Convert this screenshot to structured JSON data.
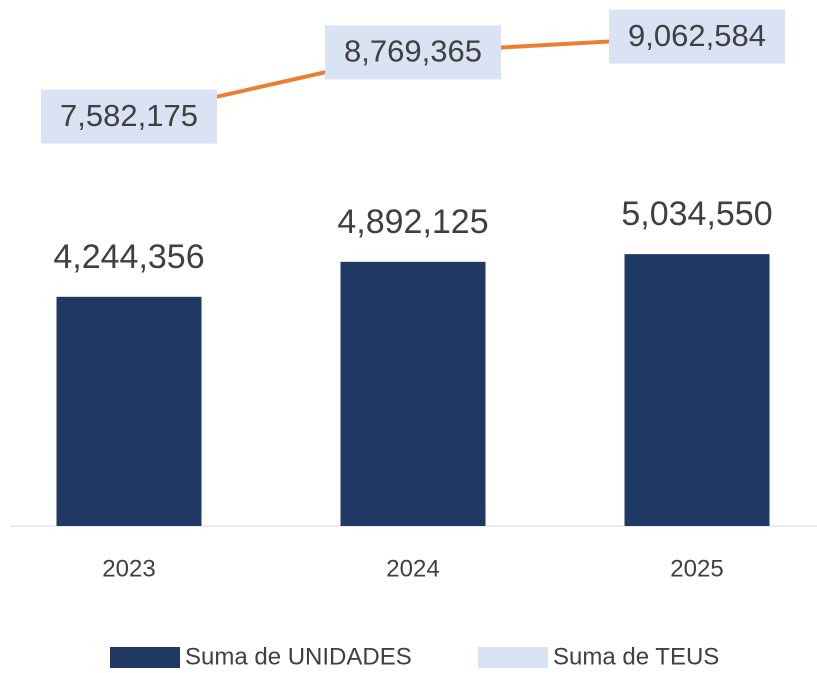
{
  "chart_data": {
    "type": "bar_line",
    "categories": [
      "2023",
      "2024",
      "2025"
    ],
    "series": [
      {
        "name": "Suma de UNIDADES",
        "type": "bar",
        "color": "#203864",
        "values": [
          4244356,
          4892125,
          5034550
        ],
        "value_labels": [
          "4,244,356",
          "4,892,125",
          "5,034,550"
        ]
      },
      {
        "name": "Suma de TEUS",
        "type": "line",
        "color": "#ed7d31",
        "label_color": "#dae3f3",
        "values": [
          7582175,
          8769365,
          9062584
        ],
        "value_labels": [
          "7,582,175",
          "8,769,365",
          "9,062,584"
        ]
      }
    ],
    "ylim": [
      0,
      9500000
    ],
    "legend": "bottom"
  }
}
